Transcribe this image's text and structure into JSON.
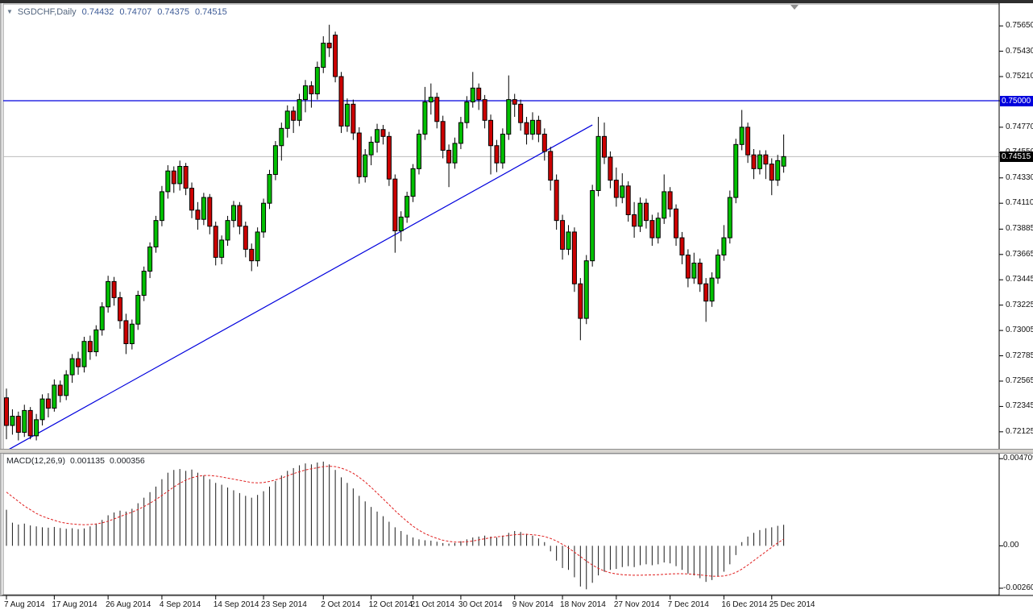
{
  "header": {
    "menu_arrow": "▼",
    "symbol_period": "SGDCHF,Daily",
    "open": "0.74432",
    "high": "0.74707",
    "low": "0.74375",
    "close": "0.74515"
  },
  "macd_header": {
    "name": "MACD(12,26,9)",
    "main_value": "0.001135",
    "signal_value": "0.000356"
  },
  "tags": {
    "hline": "0.75000",
    "current": "0.74515"
  },
  "colors": {
    "candle_up": "#00c000",
    "candle_down": "#cc0000",
    "candle_outline": "#000000",
    "blue_line": "#0000dd",
    "current_price_line": "#bdbdbd",
    "macd_histogram": "#1a1a1a",
    "macd_signal": "#e01f1f",
    "axis_line": "#000000",
    "panel_border": "#8f8f8f",
    "hline_tag_bg": "#0000dd",
    "current_tag_bg": "#000000"
  },
  "chart_data": {
    "type": "candlestick",
    "title": "SGDCHF,Daily",
    "symbol": "SGDCHF",
    "timeframe": "Daily",
    "price_range_visible": [
      0.7197,
      0.7584
    ],
    "price_axis_labels": [
      "0.75650",
      "0.75430",
      "0.75210",
      "0.75000",
      "0.74770",
      "0.74550",
      "0.74330",
      "0.74110",
      "0.73885",
      "0.73665",
      "0.73445",
      "0.73225",
      "0.73005",
      "0.72785",
      "0.72565",
      "0.72345",
      "0.72125"
    ],
    "horizontal_line_price": 0.75,
    "current_price": 0.74515,
    "trendline": {
      "i1": 0,
      "p1": 0.7196,
      "i2": 98,
      "p2": 0.7479
    },
    "x_ticks": [
      {
        "i": 0,
        "label": "7 Aug 2014"
      },
      {
        "i": 8,
        "label": "17 Aug 2014"
      },
      {
        "i": 17,
        "label": "26 Aug 2014"
      },
      {
        "i": 26,
        "label": "4 Sep 2014"
      },
      {
        "i": 35,
        "label": "14 Sep 2014"
      },
      {
        "i": 43,
        "label": "23 Sep 2014"
      },
      {
        "i": 53,
        "label": "2 Oct 2014"
      },
      {
        "i": 61,
        "label": "12 Oct 2014"
      },
      {
        "i": 68,
        "label": "21 Oct 2014"
      },
      {
        "i": 76,
        "label": "30 Oct 2014"
      },
      {
        "i": 85,
        "label": "9 Nov 2014"
      },
      {
        "i": 93,
        "label": "18 Nov 2014"
      },
      {
        "i": 102,
        "label": "27 Nov 2014"
      },
      {
        "i": 111,
        "label": "7 Dec 2014"
      },
      {
        "i": 120,
        "label": "16 Dec 2014"
      },
      {
        "i": 128,
        "label": "25 Dec 2014"
      }
    ],
    "candles": [
      [
        0.7242,
        0.725,
        0.7206,
        0.7218
      ],
      [
        0.7218,
        0.7232,
        0.721,
        0.7226
      ],
      [
        0.7226,
        0.723,
        0.7205,
        0.7212
      ],
      [
        0.7212,
        0.7236,
        0.7208,
        0.7231
      ],
      [
        0.7231,
        0.7234,
        0.7206,
        0.7209
      ],
      [
        0.7209,
        0.7228,
        0.7205,
        0.7223
      ],
      [
        0.7223,
        0.7245,
        0.7218,
        0.7241
      ],
      [
        0.7241,
        0.7246,
        0.7225,
        0.7233
      ],
      [
        0.7233,
        0.7258,
        0.723,
        0.7253
      ],
      [
        0.7253,
        0.7257,
        0.7238,
        0.7244
      ],
      [
        0.7244,
        0.7266,
        0.724,
        0.7262
      ],
      [
        0.7262,
        0.728,
        0.7255,
        0.7276
      ],
      [
        0.7276,
        0.7282,
        0.7262,
        0.7269
      ],
      [
        0.7269,
        0.7295,
        0.7264,
        0.7291
      ],
      [
        0.7291,
        0.7296,
        0.7275,
        0.7282
      ],
      [
        0.7282,
        0.7305,
        0.7278,
        0.7301
      ],
      [
        0.7301,
        0.7325,
        0.7296,
        0.7321
      ],
      [
        0.7321,
        0.7348,
        0.7316,
        0.7343
      ],
      [
        0.7343,
        0.7347,
        0.7322,
        0.7329
      ],
      [
        0.7329,
        0.7334,
        0.7302,
        0.7309
      ],
      [
        0.7309,
        0.7315,
        0.728,
        0.7289
      ],
      [
        0.7289,
        0.731,
        0.7284,
        0.7306
      ],
      [
        0.7306,
        0.7335,
        0.7301,
        0.7331
      ],
      [
        0.7331,
        0.7356,
        0.7326,
        0.7352
      ],
      [
        0.7352,
        0.7377,
        0.7346,
        0.7373
      ],
      [
        0.7373,
        0.74,
        0.7368,
        0.7396
      ],
      [
        0.7396,
        0.7426,
        0.7391,
        0.7421
      ],
      [
        0.7421,
        0.7444,
        0.7415,
        0.7439
      ],
      [
        0.7439,
        0.7443,
        0.742,
        0.7428
      ],
      [
        0.7428,
        0.7448,
        0.7422,
        0.7443
      ],
      [
        0.7443,
        0.7446,
        0.7418,
        0.7424
      ],
      [
        0.7424,
        0.7429,
        0.7398,
        0.7405
      ],
      [
        0.7405,
        0.7412,
        0.7388,
        0.7397
      ],
      [
        0.7397,
        0.742,
        0.7392,
        0.7416
      ],
      [
        0.7416,
        0.7419,
        0.7384,
        0.7391
      ],
      [
        0.7391,
        0.7395,
        0.7357,
        0.7364
      ],
      [
        0.7364,
        0.7383,
        0.7358,
        0.7379
      ],
      [
        0.7379,
        0.74,
        0.7374,
        0.7396
      ],
      [
        0.7396,
        0.7413,
        0.739,
        0.7409
      ],
      [
        0.7409,
        0.7412,
        0.7384,
        0.7391
      ],
      [
        0.7391,
        0.7395,
        0.7364,
        0.7371
      ],
      [
        0.7371,
        0.7376,
        0.7352,
        0.7361
      ],
      [
        0.7361,
        0.739,
        0.7356,
        0.7386
      ],
      [
        0.7386,
        0.7415,
        0.7381,
        0.7411
      ],
      [
        0.7411,
        0.744,
        0.7406,
        0.7436
      ],
      [
        0.7436,
        0.7465,
        0.7431,
        0.7461
      ],
      [
        0.7461,
        0.7481,
        0.7448,
        0.7476
      ],
      [
        0.7476,
        0.7496,
        0.7468,
        0.7491
      ],
      [
        0.7491,
        0.7495,
        0.7472,
        0.7483
      ],
      [
        0.7483,
        0.7506,
        0.7478,
        0.7501
      ],
      [
        0.7501,
        0.7518,
        0.749,
        0.7513
      ],
      [
        0.7513,
        0.7517,
        0.7494,
        0.7506
      ],
      [
        0.7506,
        0.7534,
        0.7501,
        0.7529
      ],
      [
        0.7529,
        0.7556,
        0.7524,
        0.755
      ],
      [
        0.755,
        0.7566,
        0.7538,
        0.7546
      ],
      [
        0.7557,
        0.756,
        0.7516,
        0.7521
      ],
      [
        0.7521,
        0.7525,
        0.7472,
        0.7478
      ],
      [
        0.7478,
        0.7502,
        0.7473,
        0.7497
      ],
      [
        0.7497,
        0.7501,
        0.7466,
        0.7472
      ],
      [
        0.7472,
        0.7477,
        0.7428,
        0.7434
      ],
      [
        0.7434,
        0.7458,
        0.7429,
        0.7453
      ],
      [
        0.7453,
        0.7469,
        0.7444,
        0.7464
      ],
      [
        0.7464,
        0.748,
        0.7455,
        0.7475
      ],
      [
        0.7475,
        0.7479,
        0.7462,
        0.7469
      ],
      [
        0.7469,
        0.7473,
        0.7426,
        0.7432
      ],
      [
        0.7432,
        0.7436,
        0.7368,
        0.7387
      ],
      [
        0.7387,
        0.7404,
        0.7378,
        0.7399
      ],
      [
        0.7399,
        0.7421,
        0.7394,
        0.7417
      ],
      [
        0.7417,
        0.7445,
        0.7412,
        0.7441
      ],
      [
        0.7441,
        0.7475,
        0.7436,
        0.7471
      ],
      [
        0.7471,
        0.7512,
        0.7466,
        0.7499
      ],
      [
        0.7499,
        0.7515,
        0.7488,
        0.7503
      ],
      [
        0.7503,
        0.7507,
        0.7476,
        0.7482
      ],
      [
        0.7482,
        0.7487,
        0.745,
        0.7457
      ],
      [
        0.7457,
        0.7462,
        0.7425,
        0.7446
      ],
      [
        0.7446,
        0.7468,
        0.7441,
        0.7463
      ],
      [
        0.7463,
        0.7486,
        0.7458,
        0.7481
      ],
      [
        0.7481,
        0.7504,
        0.7476,
        0.7499
      ],
      [
        0.7499,
        0.7525,
        0.7494,
        0.7511
      ],
      [
        0.7511,
        0.7515,
        0.7492,
        0.7501
      ],
      [
        0.7501,
        0.7505,
        0.7476,
        0.7483
      ],
      [
        0.7483,
        0.7488,
        0.7436,
        0.7461
      ],
      [
        0.7461,
        0.7466,
        0.7438,
        0.7446
      ],
      [
        0.7446,
        0.7476,
        0.7441,
        0.7471
      ],
      [
        0.7471,
        0.7522,
        0.7466,
        0.7501
      ],
      [
        0.7501,
        0.7506,
        0.7486,
        0.7497
      ],
      [
        0.7497,
        0.7501,
        0.7474,
        0.7481
      ],
      [
        0.7481,
        0.7486,
        0.7462,
        0.7471
      ],
      [
        0.7471,
        0.749,
        0.7466,
        0.7483
      ],
      [
        0.7483,
        0.7487,
        0.7464,
        0.7471
      ],
      [
        0.7471,
        0.7476,
        0.7448,
        0.7456
      ],
      [
        0.7456,
        0.746,
        0.7422,
        0.7431
      ],
      [
        0.7431,
        0.7436,
        0.7388,
        0.7396
      ],
      [
        0.7396,
        0.7401,
        0.7362,
        0.7371
      ],
      [
        0.7371,
        0.7392,
        0.7366,
        0.7386
      ],
      [
        0.7386,
        0.739,
        0.7334,
        0.7341
      ],
      [
        0.7341,
        0.7346,
        0.7292,
        0.7311
      ],
      [
        0.7311,
        0.7366,
        0.7306,
        0.7361
      ],
      [
        0.7361,
        0.7427,
        0.7356,
        0.7422
      ],
      [
        0.7422,
        0.7486,
        0.7417,
        0.7469
      ],
      [
        0.7469,
        0.7481,
        0.7445,
        0.7451
      ],
      [
        0.7451,
        0.7456,
        0.7424,
        0.7431
      ],
      [
        0.7431,
        0.7442,
        0.7408,
        0.7416
      ],
      [
        0.7416,
        0.7437,
        0.7411,
        0.7426
      ],
      [
        0.7426,
        0.743,
        0.7395,
        0.7401
      ],
      [
        0.7401,
        0.7412,
        0.7381,
        0.7391
      ],
      [
        0.7391,
        0.7416,
        0.7386,
        0.7411
      ],
      [
        0.7411,
        0.7415,
        0.7389,
        0.7396
      ],
      [
        0.7396,
        0.7401,
        0.7374,
        0.7381
      ],
      [
        0.7381,
        0.7403,
        0.7376,
        0.7398
      ],
      [
        0.7398,
        0.7436,
        0.7393,
        0.7421
      ],
      [
        0.7421,
        0.7425,
        0.7399,
        0.7406
      ],
      [
        0.7406,
        0.741,
        0.7374,
        0.7381
      ],
      [
        0.7381,
        0.7386,
        0.7358,
        0.7366
      ],
      [
        0.7366,
        0.7371,
        0.7338,
        0.7346
      ],
      [
        0.7346,
        0.7368,
        0.7341,
        0.7359
      ],
      [
        0.7359,
        0.7363,
        0.7334,
        0.7341
      ],
      [
        0.7341,
        0.7346,
        0.7308,
        0.7326
      ],
      [
        0.7326,
        0.7351,
        0.7321,
        0.7346
      ],
      [
        0.7346,
        0.7371,
        0.7341,
        0.7366
      ],
      [
        0.7366,
        0.7392,
        0.7361,
        0.7381
      ],
      [
        0.7381,
        0.7422,
        0.7376,
        0.7416
      ],
      [
        0.7416,
        0.7467,
        0.7411,
        0.7462
      ],
      [
        0.7462,
        0.7492,
        0.7457,
        0.7477
      ],
      [
        0.7477,
        0.7481,
        0.7446,
        0.7453
      ],
      [
        0.7453,
        0.7458,
        0.7432,
        0.7441
      ],
      [
        0.7441,
        0.7457,
        0.7436,
        0.7453
      ],
      [
        0.7453,
        0.7457,
        0.7432,
        0.7445
      ],
      [
        0.7445,
        0.745,
        0.7418,
        0.7431
      ],
      [
        0.7431,
        0.7453,
        0.7426,
        0.7448
      ],
      [
        0.74432,
        0.74707,
        0.74375,
        0.74515
      ]
    ],
    "macd": {
      "label": "MACD(12,26,9)",
      "main_current": 0.001135,
      "signal_current": 0.000356,
      "value_range_visible": [
        -0.00264,
        0.00498
      ],
      "axis_labels": [
        "0.004709",
        "0.00",
        "-0.002608"
      ],
      "histogram": [
        0.00195,
        0.00125,
        0.00115,
        0.0012,
        0.0011,
        0.00105,
        0.001,
        0.00098,
        0.00102,
        0.00096,
        0.00092,
        0.00095,
        0.0009,
        0.00094,
        0.00105,
        0.0012,
        0.0014,
        0.00165,
        0.0018,
        0.0019,
        0.00185,
        0.002,
        0.0023,
        0.0026,
        0.0029,
        0.0032,
        0.0036,
        0.00395,
        0.0041,
        0.00415,
        0.00405,
        0.00412,
        0.00395,
        0.0038,
        0.0036,
        0.0034,
        0.0033,
        0.00315,
        0.003,
        0.00285,
        0.0027,
        0.0026,
        0.00275,
        0.00295,
        0.0032,
        0.0035,
        0.0038,
        0.00405,
        0.0042,
        0.00435,
        0.00445,
        0.0044,
        0.0045,
        0.00455,
        0.0044,
        0.0041,
        0.0037,
        0.0034,
        0.0031,
        0.0027,
        0.0024,
        0.0021,
        0.00185,
        0.0016,
        0.0013,
        0.001,
        0.0008,
        0.0006,
        0.00045,
        0.00035,
        0.0003,
        0.00028,
        0.00022,
        0.00015,
        0.00012,
        0.00015,
        0.00025,
        0.00035,
        0.00045,
        0.0005,
        0.00055,
        0.0005,
        0.00045,
        0.00055,
        0.0007,
        0.0008,
        0.00075,
        0.00065,
        0.00055,
        0.0004,
        0.0002,
        -0.0003,
        -0.0008,
        -0.0012,
        -0.0013,
        -0.0017,
        -0.0022,
        -0.00235,
        -0.002,
        -0.0016,
        -0.0014,
        -0.0013,
        -0.00125,
        -0.00115,
        -0.0011,
        -0.00115,
        -0.00105,
        -0.001,
        -0.00105,
        -0.001,
        -0.0009,
        -0.00095,
        -0.0011,
        -0.0013,
        -0.0015,
        -0.0016,
        -0.00175,
        -0.00195,
        -0.00185,
        -0.00165,
        -0.0014,
        -0.001,
        -0.0005,
        0.0002,
        0.0005,
        0.0007,
        0.00085,
        0.00095,
        0.001,
        0.00108,
        0.001135
      ],
      "signal": [
        0.0029,
        0.00265,
        0.0024,
        0.00215,
        0.00195,
        0.00175,
        0.0016,
        0.00148,
        0.00138,
        0.00128,
        0.00122,
        0.00118,
        0.00115,
        0.00114,
        0.00115,
        0.00118,
        0.00124,
        0.00133,
        0.00145,
        0.00158,
        0.0017,
        0.00182,
        0.00196,
        0.00212,
        0.0023,
        0.0025,
        0.00272,
        0.00295,
        0.00318,
        0.00338,
        0.00355,
        0.00368,
        0.00376,
        0.0038,
        0.0038,
        0.00377,
        0.00372,
        0.00366,
        0.0036,
        0.00354,
        0.00348,
        0.00342,
        0.0034,
        0.00342,
        0.00348,
        0.00356,
        0.00366,
        0.00378,
        0.0039,
        0.004,
        0.0041,
        0.00416,
        0.00422,
        0.00428,
        0.0043,
        0.00428,
        0.0042,
        0.00408,
        0.00392,
        0.0037,
        0.00345,
        0.00316,
        0.00285,
        0.00254,
        0.00222,
        0.0019,
        0.0016,
        0.00132,
        0.00106,
        0.00084,
        0.00066,
        0.00052,
        0.0004,
        0.0003,
        0.00024,
        0.0002,
        0.0002,
        0.00022,
        0.00026,
        0.00032,
        0.00038,
        0.00044,
        0.00048,
        0.00052,
        0.00056,
        0.0006,
        0.00062,
        0.00062,
        0.0006,
        0.00056,
        0.0005,
        0.0004,
        0.00026,
        8e-05,
        -0.00012,
        -0.00034,
        -0.00058,
        -0.00082,
        -0.00104,
        -0.00122,
        -0.00136,
        -0.00146,
        -0.00152,
        -0.00156,
        -0.00158,
        -0.00159,
        -0.00159,
        -0.00158,
        -0.00157,
        -0.00156,
        -0.00154,
        -0.00152,
        -0.00151,
        -0.00151,
        -0.00152,
        -0.00154,
        -0.00157,
        -0.00161,
        -0.00164,
        -0.00165,
        -0.00163,
        -0.00156,
        -0.00144,
        -0.00126,
        -0.00104,
        -0.0008,
        -0.00056,
        -0.00032,
        -8e-05,
        0.00016,
        0.000356
      ]
    }
  }
}
